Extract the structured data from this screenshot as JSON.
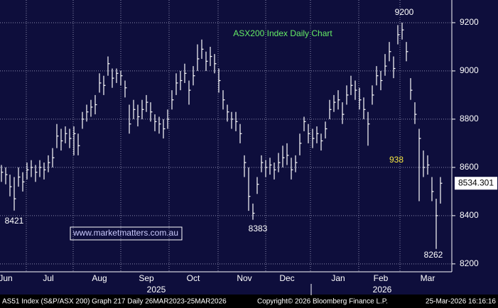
{
  "chart_data": {
    "type": "hlc",
    "title": "ASX200 Index Daily Chart",
    "categories": [
      null,
      "Jun",
      null,
      null,
      null,
      null,
      null,
      null,
      null,
      null,
      null,
      "Jul",
      null,
      null,
      null,
      null,
      null,
      null,
      null,
      null,
      null,
      null,
      null,
      "Aug",
      null,
      null,
      null,
      null,
      null,
      null,
      null,
      null,
      null,
      null,
      "Sep",
      null,
      null,
      null,
      null,
      null,
      null,
      null,
      null,
      null,
      null,
      "Oct",
      null,
      null,
      null,
      null,
      null,
      null,
      null,
      null,
      null,
      null,
      null,
      "Nov",
      null,
      null,
      null,
      null,
      null,
      null,
      null,
      null,
      null,
      "Dec",
      null,
      null,
      null,
      null,
      null,
      null,
      null,
      null,
      null,
      null,
      null,
      "Jan",
      null,
      null,
      null,
      null,
      null,
      null,
      null,
      null,
      null,
      "Feb",
      null,
      null,
      null,
      null,
      null,
      null,
      null,
      null,
      null,
      null,
      "Mar",
      null,
      null,
      null
    ],
    "x_years": [
      "2025",
      "2026"
    ],
    "high": [
      8610,
      8600,
      8570,
      8560,
      8600,
      8580,
      8620,
      8630,
      8610,
      8630,
      8620,
      8650,
      8680,
      8780,
      8760,
      8770,
      8760,
      8770,
      8740,
      8830,
      8860,
      8880,
      8900,
      8990,
      8980,
      9060,
      9010,
      9010,
      9000,
      8960,
      8860,
      8880,
      8860,
      8880,
      8900,
      8870,
      8820,
      8810,
      8800,
      8840,
      8920,
      8990,
      9000,
      9030,
      8960,
      9020,
      9110,
      9130,
      9080,
      9100,
      9070,
      9010,
      8920,
      8860,
      8830,
      8830,
      8780,
      8650,
      8600,
      8450,
      8560,
      8650,
      8630,
      8640,
      8620,
      8660,
      8690,
      8700,
      8640,
      8650,
      8740,
      8810,
      8780,
      8760,
      8770,
      8740,
      8790,
      8880,
      8900,
      8920,
      8870,
      8940,
      8980,
      8960,
      8930,
      8890,
      8830,
      8940,
      9020,
      9000,
      9070,
      9120,
      9060,
      9190,
      9200,
      9120,
      8970,
      8870,
      8760,
      8670,
      8650,
      8560,
      8470,
      8560
    ],
    "low": [
      8540,
      8530,
      8480,
      8421,
      8520,
      8500,
      8550,
      8560,
      8540,
      8560,
      8550,
      8580,
      8600,
      8680,
      8670,
      8700,
      8680,
      8650,
      8650,
      8760,
      8790,
      8810,
      8820,
      8910,
      8900,
      8980,
      8930,
      8950,
      8940,
      8890,
      8740,
      8800,
      8770,
      8800,
      8830,
      8790,
      8750,
      8740,
      8720,
      8760,
      8840,
      8900,
      8920,
      8950,
      8860,
      8940,
      9000,
      9050,
      9000,
      9020,
      8990,
      8910,
      8840,
      8790,
      8760,
      8750,
      8700,
      8560,
      8420,
      8383,
      8490,
      8580,
      8560,
      8570,
      8550,
      8580,
      8600,
      8610,
      8550,
      8580,
      8650,
      8750,
      8700,
      8680,
      8700,
      8670,
      8720,
      8800,
      8830,
      8840,
      8780,
      8860,
      8900,
      8880,
      8840,
      8800,
      8690,
      8860,
      8940,
      8920,
      8980,
      9040,
      8970,
      9110,
      9130,
      9040,
      8880,
      8780,
      8460,
      8560,
      8570,
      8460,
      8262,
      8450
    ],
    "close": [
      8580,
      8570,
      8520,
      8470,
      8560,
      8540,
      8590,
      8600,
      8580,
      8600,
      8590,
      8620,
      8640,
      8730,
      8710,
      8740,
      8720,
      8740,
      8690,
      8800,
      8830,
      8850,
      8860,
      8950,
      8940,
      9030,
      8970,
      8990,
      8980,
      8930,
      8780,
      8840,
      8810,
      8840,
      8870,
      8830,
      8790,
      8780,
      8760,
      8800,
      8880,
      8950,
      8960,
      8990,
      8920,
      8980,
      9050,
      9090,
      9040,
      9060,
      9030,
      8960,
      8880,
      8830,
      8800,
      8790,
      8740,
      8620,
      8480,
      8410,
      8530,
      8620,
      8600,
      8610,
      8590,
      8620,
      8640,
      8650,
      8590,
      8620,
      8700,
      8790,
      8740,
      8720,
      8740,
      8710,
      8760,
      8840,
      8870,
      8880,
      8820,
      8900,
      8940,
      8920,
      8880,
      8840,
      8780,
      8900,
      8980,
      8960,
      9020,
      9080,
      9010,
      9150,
      9170,
      9080,
      8920,
      8820,
      8720,
      8600,
      8610,
      8500,
      8400,
      8534.301
    ],
    "ylim": [
      8176,
      9294
    ],
    "yticks": [
      8200,
      8400,
      8600,
      8800,
      9000,
      9200
    ],
    "grid": true,
    "color": "#ffffff",
    "annotations": [
      {
        "text": "9200"
      },
      {
        "text": "8421"
      },
      {
        "text": "8383"
      },
      {
        "text": "8262"
      },
      {
        "text": "938"
      },
      {
        "text": "www.marketmatters.com.au"
      }
    ],
    "footer": [
      "AS51 Index (S&P/ASX 200) Graph 217 Daily 26MAR2023-25MAR2026",
      "Copyright© 2026 Bloomberg Finance L.P.",
      "25-Mar-2026 16:16:16"
    ]
  }
}
